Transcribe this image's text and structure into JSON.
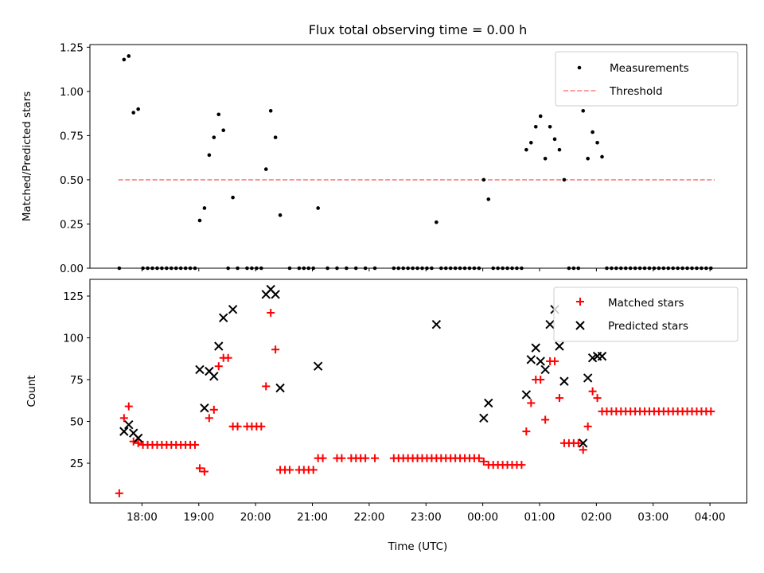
{
  "chart_data": [
    {
      "type": "scatter",
      "title": "Flux total observing time = 0.00 h",
      "xlabel": "",
      "ylabel": "Matched/Predicted stars",
      "ylim": [
        0,
        1.265
      ],
      "yticks": [
        "0.00",
        "0.25",
        "0.50",
        "0.75",
        "1.00",
        "1.25"
      ],
      "ytick_values": [
        0,
        0.25,
        0.5,
        0.75,
        1.0,
        1.25
      ],
      "xlim_minutes_from_1800": [
        -55,
        639
      ],
      "xtick_minutes_from_1800": [
        0,
        60,
        120,
        180,
        240,
        300,
        360,
        420,
        480,
        540,
        600
      ],
      "legend": {
        "placement": "upper right",
        "entries": [
          "Measurements",
          "Threshold"
        ]
      },
      "threshold": {
        "name": "Threshold",
        "value": 0.5,
        "x_range_minutes": [
          -25,
          605
        ],
        "color": "#ff7f7f",
        "style": "dashed"
      },
      "series": [
        {
          "name": "Measurements",
          "color": "#000000",
          "points_minutes_ratio": [
            [
              -24,
              0.0
            ],
            [
              -19,
              1.18
            ],
            [
              -14,
              1.2
            ],
            [
              -9,
              0.88
            ],
            [
              -4,
              0.9
            ],
            [
              1,
              0
            ],
            [
              6,
              0
            ],
            [
              11,
              0
            ],
            [
              16,
              0
            ],
            [
              21,
              0
            ],
            [
              26,
              0
            ],
            [
              31,
              0
            ],
            [
              36,
              0
            ],
            [
              41,
              0
            ],
            [
              46,
              0
            ],
            [
              51,
              0
            ],
            [
              56,
              0
            ],
            [
              61,
              0.27
            ],
            [
              66,
              0.34
            ],
            [
              71,
              0.64
            ],
            [
              76,
              0.74
            ],
            [
              81,
              0.87
            ],
            [
              86,
              0.78
            ],
            [
              91,
              0.0
            ],
            [
              96,
              0.4
            ],
            [
              101,
              0.0
            ],
            [
              111,
              0
            ],
            [
              116,
              0
            ],
            [
              121,
              0
            ],
            [
              126,
              0
            ],
            [
              131,
              0.56
            ],
            [
              136,
              0.89
            ],
            [
              141,
              0.74
            ],
            [
              146,
              0.3
            ],
            [
              156,
              0
            ],
            [
              166,
              0
            ],
            [
              171,
              0
            ],
            [
              176,
              0
            ],
            [
              181,
              0
            ],
            [
              186,
              0.34
            ],
            [
              196,
              0
            ],
            [
              206,
              0
            ],
            [
              216,
              0
            ],
            [
              226,
              0
            ],
            [
              236,
              0
            ],
            [
              246,
              0
            ],
            [
              266,
              0
            ],
            [
              271,
              0
            ],
            [
              276,
              0
            ],
            [
              281,
              0
            ],
            [
              286,
              0
            ],
            [
              291,
              0
            ],
            [
              296,
              0
            ],
            [
              301,
              0
            ],
            [
              306,
              0
            ],
            [
              311,
              0.26
            ],
            [
              316,
              0
            ],
            [
              321,
              0
            ],
            [
              326,
              0
            ],
            [
              331,
              0
            ],
            [
              336,
              0
            ],
            [
              341,
              0
            ],
            [
              346,
              0
            ],
            [
              351,
              0
            ],
            [
              356,
              0
            ],
            [
              361,
              0.5
            ],
            [
              366,
              0.39
            ],
            [
              371,
              0
            ],
            [
              376,
              0
            ],
            [
              381,
              0
            ],
            [
              386,
              0
            ],
            [
              391,
              0
            ],
            [
              396,
              0
            ],
            [
              401,
              0
            ],
            [
              406,
              0.67
            ],
            [
              411,
              0.71
            ],
            [
              416,
              0.8
            ],
            [
              421,
              0.86
            ],
            [
              426,
              0.62
            ],
            [
              431,
              0.8
            ],
            [
              436,
              0.73
            ],
            [
              441,
              0.67
            ],
            [
              446,
              0.5
            ],
            [
              451,
              0
            ],
            [
              456,
              0
            ],
            [
              461,
              0
            ],
            [
              466,
              0.89
            ],
            [
              471,
              0.62
            ],
            [
              476,
              0.77
            ],
            [
              481,
              0.71
            ],
            [
              486,
              0.63
            ],
            [
              491,
              0
            ],
            [
              496,
              0
            ],
            [
              501,
              0
            ],
            [
              506,
              0
            ],
            [
              511,
              0
            ],
            [
              516,
              0
            ],
            [
              521,
              0
            ],
            [
              526,
              0
            ],
            [
              531,
              0
            ],
            [
              536,
              0
            ],
            [
              541,
              0
            ],
            [
              546,
              0
            ],
            [
              551,
              0
            ],
            [
              556,
              0
            ],
            [
              561,
              0
            ],
            [
              566,
              0
            ],
            [
              571,
              0
            ],
            [
              576,
              0
            ],
            [
              581,
              0
            ],
            [
              586,
              0
            ],
            [
              591,
              0
            ],
            [
              596,
              0
            ],
            [
              601,
              0
            ]
          ]
        }
      ]
    },
    {
      "type": "scatter",
      "title": "",
      "xlabel": "Time (UTC)",
      "ylabel": "Count",
      "ylim": [
        1.2,
        135
      ],
      "yticks": [
        "25",
        "50",
        "75",
        "100",
        "125"
      ],
      "ytick_values": [
        25,
        50,
        75,
        100,
        125
      ],
      "xlim_minutes_from_1800": [
        -55,
        639
      ],
      "xticks": [
        "18:00",
        "19:00",
        "20:00",
        "21:00",
        "22:00",
        "23:00",
        "00:00",
        "01:00",
        "02:00",
        "03:00",
        "04:00"
      ],
      "xtick_minutes_from_1800": [
        0,
        60,
        120,
        180,
        240,
        300,
        360,
        420,
        480,
        540,
        600
      ],
      "legend": {
        "placement": "upper right",
        "entries": [
          "Matched stars",
          "Predicted stars"
        ]
      },
      "series": [
        {
          "name": "Matched stars",
          "marker": "+",
          "color": "#ff0000",
          "points_minutes_value": [
            [
              -24,
              7
            ],
            [
              -19,
              52
            ],
            [
              -14,
              59
            ],
            [
              -9,
              38
            ],
            [
              -4,
              37
            ],
            [
              1,
              36
            ],
            [
              6,
              36
            ],
            [
              11,
              36
            ],
            [
              16,
              36
            ],
            [
              21,
              36
            ],
            [
              26,
              36
            ],
            [
              31,
              36
            ],
            [
              36,
              36
            ],
            [
              41,
              36
            ],
            [
              46,
              36
            ],
            [
              51,
              36
            ],
            [
              56,
              36
            ],
            [
              61,
              22
            ],
            [
              66,
              20
            ],
            [
              71,
              52
            ],
            [
              76,
              57
            ],
            [
              81,
              83
            ],
            [
              86,
              88
            ],
            [
              91,
              88
            ],
            [
              96,
              47
            ],
            [
              101,
              47
            ],
            [
              111,
              47
            ],
            [
              116,
              47
            ],
            [
              121,
              47
            ],
            [
              126,
              47
            ],
            [
              131,
              71
            ],
            [
              136,
              115
            ],
            [
              141,
              93
            ],
            [
              146,
              21
            ],
            [
              151,
              21
            ],
            [
              156,
              21
            ],
            [
              166,
              21
            ],
            [
              171,
              21
            ],
            [
              176,
              21
            ],
            [
              181,
              21
            ],
            [
              186,
              28
            ],
            [
              191,
              28
            ],
            [
              206,
              28
            ],
            [
              211,
              28
            ],
            [
              221,
              28
            ],
            [
              226,
              28
            ],
            [
              231,
              28
            ],
            [
              236,
              28
            ],
            [
              246,
              28
            ],
            [
              266,
              28
            ],
            [
              271,
              28
            ],
            [
              276,
              28
            ],
            [
              281,
              28
            ],
            [
              286,
              28
            ],
            [
              291,
              28
            ],
            [
              296,
              28
            ],
            [
              301,
              28
            ],
            [
              306,
              28
            ],
            [
              311,
              28
            ],
            [
              316,
              28
            ],
            [
              321,
              28
            ],
            [
              326,
              28
            ],
            [
              331,
              28
            ],
            [
              336,
              28
            ],
            [
              341,
              28
            ],
            [
              346,
              28
            ],
            [
              351,
              28
            ],
            [
              356,
              28
            ],
            [
              361,
              26
            ],
            [
              366,
              24
            ],
            [
              371,
              24
            ],
            [
              376,
              24
            ],
            [
              381,
              24
            ],
            [
              386,
              24
            ],
            [
              391,
              24
            ],
            [
              396,
              24
            ],
            [
              401,
              24
            ],
            [
              406,
              44
            ],
            [
              411,
              61
            ],
            [
              416,
              75
            ],
            [
              421,
              75
            ],
            [
              426,
              51
            ],
            [
              431,
              86
            ],
            [
              436,
              86
            ],
            [
              441,
              64
            ],
            [
              446,
              37
            ],
            [
              451,
              37
            ],
            [
              456,
              37
            ],
            [
              461,
              37
            ],
            [
              466,
              33
            ],
            [
              471,
              47
            ],
            [
              476,
              68
            ],
            [
              481,
              64
            ],
            [
              486,
              56
            ],
            [
              491,
              56
            ],
            [
              496,
              56
            ],
            [
              501,
              56
            ],
            [
              506,
              56
            ],
            [
              511,
              56
            ],
            [
              516,
              56
            ],
            [
              521,
              56
            ],
            [
              526,
              56
            ],
            [
              531,
              56
            ],
            [
              536,
              56
            ],
            [
              541,
              56
            ],
            [
              546,
              56
            ],
            [
              551,
              56
            ],
            [
              556,
              56
            ],
            [
              561,
              56
            ],
            [
              566,
              56
            ],
            [
              571,
              56
            ],
            [
              576,
              56
            ],
            [
              581,
              56
            ],
            [
              586,
              56
            ],
            [
              591,
              56
            ],
            [
              596,
              56
            ],
            [
              601,
              56
            ]
          ]
        },
        {
          "name": "Predicted stars",
          "marker": "x",
          "color": "#000000",
          "points_minutes_value": [
            [
              -19,
              44
            ],
            [
              -14,
              48
            ],
            [
              -9,
              43
            ],
            [
              -4,
              40
            ],
            [
              61,
              81
            ],
            [
              66,
              58
            ],
            [
              71,
              80
            ],
            [
              76,
              77
            ],
            [
              81,
              95
            ],
            [
              86,
              112
            ],
            [
              96,
              117
            ],
            [
              131,
              126
            ],
            [
              136,
              129
            ],
            [
              141,
              126
            ],
            [
              146,
              70
            ],
            [
              186,
              83
            ],
            [
              311,
              108
            ],
            [
              361,
              52
            ],
            [
              366,
              61
            ],
            [
              406,
              66
            ],
            [
              411,
              87
            ],
            [
              416,
              94
            ],
            [
              421,
              86
            ],
            [
              426,
              81
            ],
            [
              431,
              108
            ],
            [
              436,
              117
            ],
            [
              441,
              95
            ],
            [
              446,
              74
            ],
            [
              466,
              37
            ],
            [
              471,
              76
            ],
            [
              476,
              88
            ],
            [
              481,
              89
            ],
            [
              486,
              89
            ]
          ]
        }
      ]
    }
  ]
}
